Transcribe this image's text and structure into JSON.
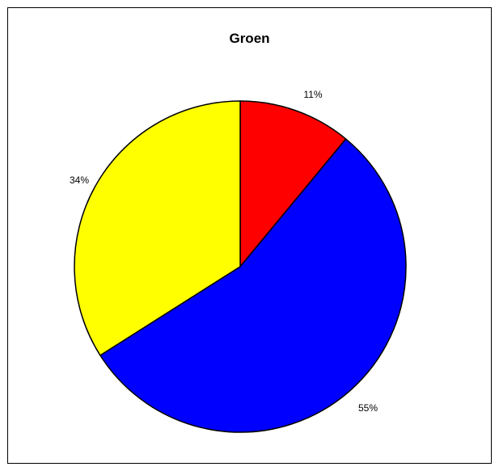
{
  "chart_data": {
    "type": "pie",
    "title": "Groen",
    "slices": [
      {
        "label": "11%",
        "value": 11,
        "color": "#ff0000"
      },
      {
        "label": "55%",
        "value": 55,
        "color": "#0000ff"
      },
      {
        "label": "34%",
        "value": 34,
        "color": "#ffff00"
      }
    ],
    "start_angle_deg": 0,
    "direction": "clockwise",
    "legend": "none"
  }
}
